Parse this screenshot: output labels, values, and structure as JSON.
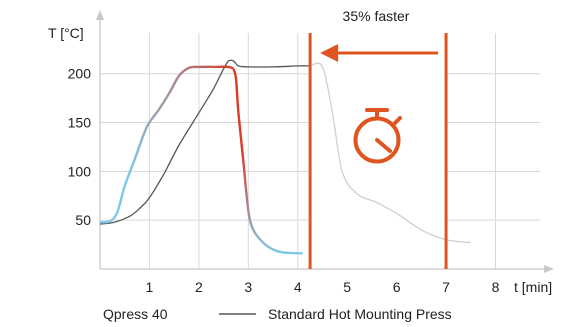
{
  "chart_data": {
    "type": "line",
    "ylabel": "T [°C]",
    "xlabel": "t [min]",
    "xlim": [
      0,
      8.9
    ],
    "ylim": [
      0,
      255
    ],
    "grid": true,
    "legend_position": "bottom",
    "x_ticks": [
      "1",
      "2",
      "3",
      "4",
      "5",
      "6",
      "7",
      "8"
    ],
    "x_tick_values": [
      1,
      2,
      3,
      4,
      5,
      6,
      7,
      8
    ],
    "y_ticks": [
      "50",
      "100",
      "150",
      "200"
    ],
    "y_tick_values": [
      50,
      100,
      150,
      200
    ],
    "annotation": "35% faster",
    "highlight_range": [
      4.25,
      7.0
    ],
    "colors": {
      "qpress_start": "#7ec8ea",
      "qpress_end": "#dd3b26",
      "standard": "#555555",
      "highlight": "#e0541f"
    },
    "series": [
      {
        "name": "Qpress 40",
        "points": [
          [
            0.0,
            48
          ],
          [
            0.2,
            49
          ],
          [
            0.35,
            58
          ],
          [
            0.5,
            85
          ],
          [
            0.7,
            112
          ],
          [
            0.9,
            140
          ],
          [
            1.0,
            150
          ],
          [
            1.2,
            164
          ],
          [
            1.4,
            180
          ],
          [
            1.6,
            198
          ],
          [
            1.8,
            206
          ],
          [
            2.0,
            207
          ],
          [
            2.3,
            207
          ],
          [
            2.6,
            207
          ],
          [
            2.7,
            205
          ],
          [
            2.75,
            195
          ],
          [
            2.8,
            160
          ],
          [
            2.9,
            110
          ],
          [
            3.0,
            60
          ],
          [
            3.1,
            40
          ],
          [
            3.3,
            27
          ],
          [
            3.5,
            20
          ],
          [
            3.7,
            17
          ],
          [
            4.1,
            16
          ]
        ]
      },
      {
        "name": "Standard Hot Mounting Press",
        "points": [
          [
            0.0,
            46
          ],
          [
            0.3,
            48
          ],
          [
            0.6,
            54
          ],
          [
            0.8,
            62
          ],
          [
            1.0,
            73
          ],
          [
            1.3,
            98
          ],
          [
            1.6,
            127
          ],
          [
            2.0,
            160
          ],
          [
            2.3,
            185
          ],
          [
            2.5,
            205
          ],
          [
            2.6,
            213
          ],
          [
            2.7,
            213
          ],
          [
            2.8,
            208
          ],
          [
            3.0,
            207
          ],
          [
            3.5,
            207
          ],
          [
            4.0,
            208
          ],
          [
            4.25,
            208
          ],
          [
            4.5,
            207
          ],
          [
            4.7,
            160
          ],
          [
            4.9,
            100
          ],
          [
            5.2,
            77
          ],
          [
            5.6,
            68
          ],
          [
            6.0,
            57
          ],
          [
            6.5,
            40
          ],
          [
            7.0,
            30
          ],
          [
            7.5,
            27
          ]
        ]
      }
    ]
  }
}
